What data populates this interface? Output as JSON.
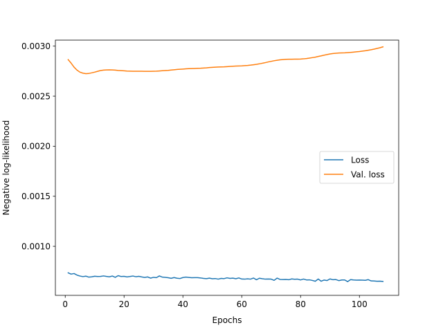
{
  "chart_data": {
    "type": "line",
    "xlabel": "Epochs",
    "ylabel": "Negative log-likelihood",
    "xlim": [
      -3.35,
      113.35
    ],
    "ylim": [
      0.00051,
      0.00306
    ],
    "xticks": [
      0,
      20,
      40,
      60,
      80,
      100
    ],
    "xtick_labels": [
      "0",
      "20",
      "40",
      "60",
      "80",
      "100"
    ],
    "yticks": [
      0.001,
      0.0015,
      0.002,
      0.0025,
      0.003
    ],
    "ytick_labels": [
      "0.0010",
      "0.0015",
      "0.0020",
      "0.0025",
      "0.0030"
    ],
    "grid": false,
    "legend_position": "center-right",
    "series": [
      {
        "name": "Loss",
        "color": "#1f77b4",
        "x": [
          1,
          2,
          3,
          4,
          5,
          6,
          7,
          8,
          9,
          10,
          11,
          12,
          13,
          14,
          15,
          16,
          17,
          18,
          19,
          20,
          21,
          22,
          23,
          24,
          25,
          26,
          27,
          28,
          29,
          30,
          31,
          32,
          33,
          34,
          35,
          36,
          37,
          38,
          39,
          40,
          41,
          42,
          43,
          44,
          45,
          46,
          47,
          48,
          49,
          50,
          51,
          52,
          53,
          54,
          55,
          56,
          57,
          58,
          59,
          60,
          61,
          62,
          63,
          64,
          65,
          66,
          67,
          68,
          69,
          70,
          71,
          72,
          73,
          74,
          75,
          76,
          77,
          78,
          79,
          80,
          81,
          82,
          83,
          84,
          85,
          86,
          87,
          88,
          89,
          90,
          91,
          92,
          93,
          94,
          95,
          96,
          97,
          98,
          99,
          100,
          101,
          102,
          103,
          104,
          105,
          106,
          107,
          108
        ],
        "y": [
          0.000735,
          0.000722,
          0.000728,
          0.000712,
          0.000703,
          0.000697,
          0.000702,
          0.000692,
          0.000695,
          0.000701,
          0.000698,
          0.000699,
          0.000704,
          0.000699,
          0.000695,
          0.000703,
          0.00069,
          0.000707,
          0.000698,
          0.0007,
          0.000694,
          0.000698,
          0.000703,
          0.000696,
          0.0007,
          0.000694,
          0.000689,
          0.000694,
          0.000682,
          0.00069,
          0.000687,
          0.000704,
          0.000692,
          0.00069,
          0.000686,
          0.00068,
          0.000688,
          0.000681,
          0.000678,
          0.000688,
          0.000692,
          0.000689,
          0.000686,
          0.000687,
          0.000687,
          0.000684,
          0.000679,
          0.000677,
          0.000682,
          0.000676,
          0.000678,
          0.000672,
          0.000679,
          0.000677,
          0.000685,
          0.000679,
          0.000682,
          0.000676,
          0.000684,
          0.000673,
          0.000672,
          0.000675,
          0.000672,
          0.000683,
          0.000666,
          0.000681,
          0.000676,
          0.000672,
          0.000673,
          0.000672,
          0.00066,
          0.000682,
          0.000669,
          0.000668,
          0.000669,
          0.000666,
          0.000674,
          0.000671,
          0.000672,
          0.000664,
          0.000673,
          0.000664,
          0.000665,
          0.000659,
          0.000651,
          0.000673,
          0.000651,
          0.000663,
          0.000658,
          0.000674,
          0.000666,
          0.000668,
          0.000657,
          0.000664,
          0.000664,
          0.000647,
          0.000667,
          0.000664,
          0.000662,
          0.000663,
          0.000662,
          0.00066,
          0.000667,
          0.000654,
          0.000653,
          0.000651,
          0.000652,
          0.000649
        ]
      },
      {
        "name": "Val. loss",
        "color": "#ff7f0e",
        "x": [
          1,
          2,
          3,
          4,
          5,
          6,
          7,
          8,
          9,
          10,
          11,
          12,
          13,
          14,
          15,
          16,
          17,
          18,
          19,
          20,
          21,
          22,
          23,
          24,
          25,
          26,
          27,
          28,
          29,
          30,
          31,
          32,
          33,
          34,
          35,
          36,
          37,
          38,
          39,
          40,
          41,
          42,
          43,
          44,
          45,
          46,
          47,
          48,
          49,
          50,
          51,
          52,
          53,
          54,
          55,
          56,
          57,
          58,
          59,
          60,
          61,
          62,
          63,
          64,
          65,
          66,
          67,
          68,
          69,
          70,
          71,
          72,
          73,
          74,
          75,
          76,
          77,
          78,
          79,
          80,
          81,
          82,
          83,
          84,
          85,
          86,
          87,
          88,
          89,
          90,
          91,
          92,
          93,
          94,
          95,
          96,
          97,
          98,
          99,
          100,
          101,
          102,
          103,
          104,
          105,
          106,
          107,
          108
        ],
        "y": [
          0.002865,
          0.00283,
          0.00279,
          0.00276,
          0.00274,
          0.00273,
          0.002725,
          0.002727,
          0.002733,
          0.00274,
          0.002748,
          0.002756,
          0.00276,
          0.002762,
          0.002763,
          0.002762,
          0.00276,
          0.002757,
          0.002755,
          0.002753,
          0.002751,
          0.00275,
          0.002749,
          0.002749,
          0.002749,
          0.002749,
          0.002748,
          0.002748,
          0.002748,
          0.002749,
          0.00275,
          0.002752,
          0.002754,
          0.002756,
          0.002758,
          0.002761,
          0.002764,
          0.002767,
          0.002769,
          0.002771,
          0.002773,
          0.002775,
          0.002776,
          0.002777,
          0.002778,
          0.002779,
          0.002781,
          0.002783,
          0.002786,
          0.002788,
          0.00279,
          0.002791,
          0.002792,
          0.002793,
          0.002795,
          0.002797,
          0.002799,
          0.002801,
          0.002802,
          0.002803,
          0.002805,
          0.002807,
          0.00281,
          0.002814,
          0.002818,
          0.002823,
          0.002829,
          0.002835,
          0.002842,
          0.002848,
          0.002854,
          0.002859,
          0.002863,
          0.002866,
          0.002868,
          0.002869,
          0.002869,
          0.00287,
          0.00287,
          0.002871,
          0.002873,
          0.002876,
          0.00288,
          0.002885,
          0.00289,
          0.002897,
          0.002903,
          0.00291,
          0.002916,
          0.002922,
          0.002926,
          0.002929,
          0.002931,
          0.002932,
          0.002933,
          0.002935,
          0.002937,
          0.00294,
          0.002943,
          0.002946,
          0.00295,
          0.002954,
          0.002959,
          0.002964,
          0.00297,
          0.002977,
          0.002984,
          0.002993
        ]
      }
    ]
  }
}
